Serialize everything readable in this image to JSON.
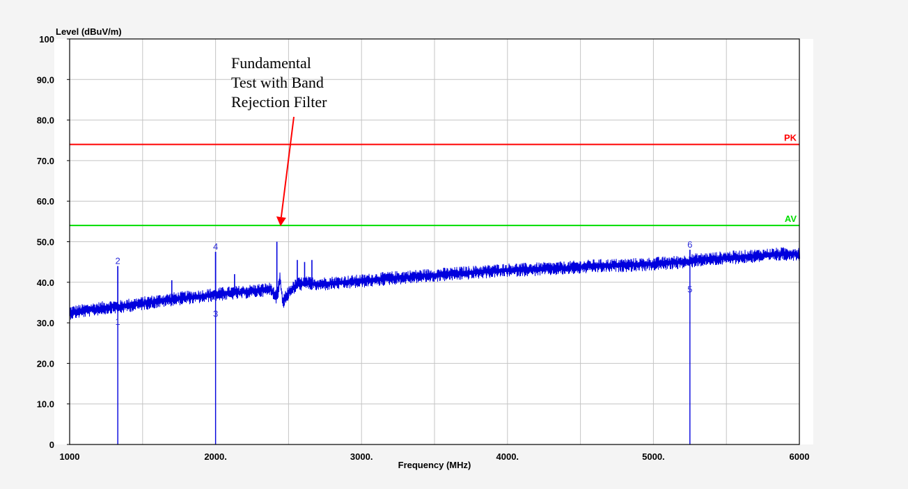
{
  "chart_data": {
    "type": "line",
    "title": "",
    "xlabel": "Frequency (MHz)",
    "ylabel": "Level (dBuV/m)",
    "xlim": [
      1000,
      6000
    ],
    "ylim": [
      0,
      100
    ],
    "grid": true,
    "x_ticks": [
      "1000",
      "2000.",
      "3000.",
      "4000.",
      "5000.",
      "6000"
    ],
    "y_ticks": [
      "0",
      "10.0",
      "20.0",
      "30.0",
      "40.0",
      "50.0",
      "60.0",
      "70.0",
      "80.0",
      "90.0",
      "100"
    ],
    "limit_lines": [
      {
        "name": "PK",
        "y": 74,
        "color": "#ff0000"
      },
      {
        "name": "AV",
        "y": 54,
        "color": "#00dd00"
      }
    ],
    "series": [
      {
        "color": "#0000dd",
        "x": [
          1000,
          1100,
          1200,
          1300,
          1330,
          1400,
          1500,
          1600,
          1700,
          1800,
          1900,
          2000,
          2100,
          2200,
          2300,
          2380,
          2420,
          2440,
          2460,
          2500,
          2560,
          2620,
          2700,
          2800,
          2900,
          3000,
          3200,
          3400,
          3600,
          3800,
          4000,
          4200,
          4400,
          4600,
          4800,
          5000,
          5200,
          5300,
          5500,
          5700,
          5900,
          6000
        ],
        "y": [
          32.5,
          33.0,
          33.5,
          34.0,
          33.8,
          34.3,
          34.8,
          35.3,
          35.8,
          36.2,
          36.5,
          37.0,
          37.3,
          37.6,
          38.0,
          38.3,
          36.0,
          41.0,
          35.0,
          37.5,
          39.5,
          39.8,
          39.5,
          39.8,
          40.0,
          40.3,
          41.0,
          41.5,
          42.0,
          42.5,
          43.0,
          43.2,
          43.5,
          44.0,
          44.2,
          44.5,
          45.0,
          45.5,
          46.0,
          46.5,
          47.0,
          47.0
        ]
      }
    ],
    "spikes": [
      {
        "x": 1330,
        "y": 44
      },
      {
        "x": 1700,
        "y": 40.5
      },
      {
        "x": 2000,
        "y": 47.5
      },
      {
        "x": 2130,
        "y": 42
      },
      {
        "x": 2420,
        "y": 50
      },
      {
        "x": 2560,
        "y": 45.5
      },
      {
        "x": 2610,
        "y": 45
      },
      {
        "x": 2660,
        "y": 45.5
      },
      {
        "x": 3900,
        "y": 44
      },
      {
        "x": 5250,
        "y": 48
      }
    ],
    "markers": [
      {
        "label": "1",
        "x": 1330,
        "y": 29.0
      },
      {
        "label": "2",
        "x": 1330,
        "y": 44.0
      },
      {
        "label": "3",
        "x": 2000,
        "y": 31.0
      },
      {
        "label": "4",
        "x": 2000,
        "y": 47.5
      },
      {
        "label": "5",
        "x": 5250,
        "y": 37.0
      },
      {
        "label": "6",
        "x": 5250,
        "y": 48.0
      }
    ],
    "annotation": {
      "lines": [
        "Fundamental",
        "Test with Band",
        "Rejection Filter"
      ],
      "arrow_target": {
        "x": 2445,
        "y": 54
      },
      "arrow_color": "#ff0000"
    }
  }
}
